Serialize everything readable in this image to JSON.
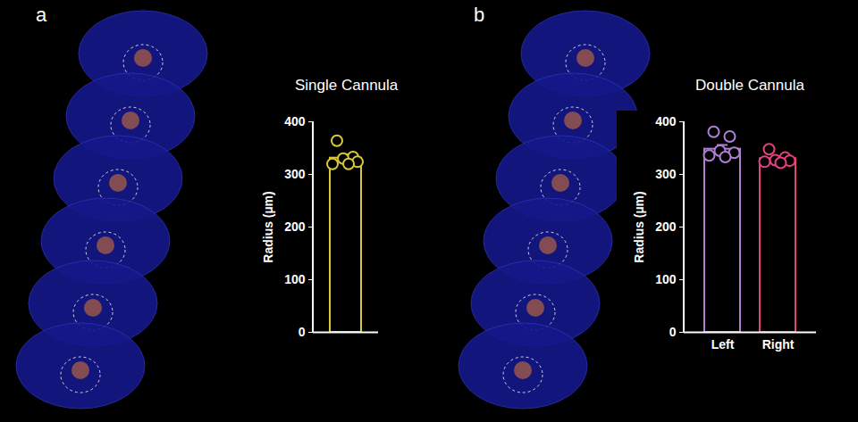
{
  "chart_data": [
    {
      "type": "bar",
      "panel": "a",
      "title": "Single Cannula",
      "y_label": "Radius (µm)",
      "categories": [
        null
      ],
      "values": [
        331
      ],
      "errors": [
        7
      ],
      "points": [
        [
          364,
          333,
          330,
          324,
          320,
          320
        ]
      ],
      "colors": [
        "#d9c93a"
      ],
      "ylim": [
        0,
        400
      ],
      "yticks": [
        0,
        100,
        200,
        300,
        400
      ]
    },
    {
      "type": "bar",
      "panel": "b",
      "title": "Double Cannula",
      "y_label": "Radius (µm)",
      "categories": [
        "Left",
        "Right"
      ],
      "values": [
        348,
        330
      ],
      "errors": [
        8,
        4
      ],
      "points": [
        [
          381,
          372,
          345,
          341,
          336,
          333
        ],
        [
          348,
          332,
          327,
          326,
          324,
          322
        ]
      ],
      "colors": [
        "#b07fd4",
        "#e5437f"
      ],
      "ylim": [
        0,
        400
      ],
      "yticks": [
        0,
        100,
        200,
        300,
        400
      ]
    }
  ]
}
